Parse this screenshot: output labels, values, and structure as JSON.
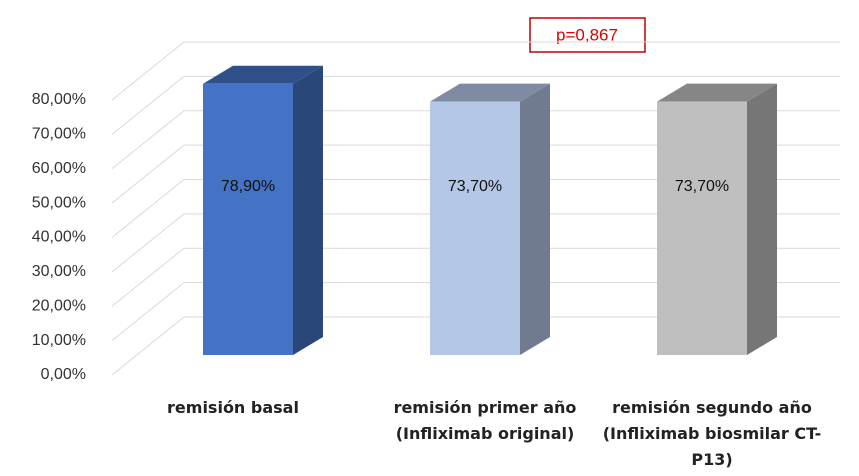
{
  "chart_data": {
    "type": "bar3d",
    "categories": [
      "remisión basal",
      "remisión primer año (Infliximab original)",
      "remisión segundo año (Infliximab biosmilar CT-P13)"
    ],
    "values": [
      78.9,
      73.7,
      73.7
    ],
    "value_labels": [
      "78,90%",
      "73,70%",
      "73,70%"
    ],
    "colors": [
      "#4472c4",
      "#b4c7e7",
      "#bfbfbf"
    ],
    "ylim": [
      0,
      80
    ],
    "yticks": [
      {
        "value": 0,
        "label": "0,00%"
      },
      {
        "value": 10,
        "label": "10,00%"
      },
      {
        "value": 20,
        "label": "20,00%"
      },
      {
        "value": 30,
        "label": "30,00%"
      },
      {
        "value": 40,
        "label": "40,00%"
      },
      {
        "value": 50,
        "label": "50,00%"
      },
      {
        "value": 60,
        "label": "60,00%"
      },
      {
        "value": 70,
        "label": "70,00%"
      },
      {
        "value": 80,
        "label": "80,00%"
      }
    ],
    "grid": true,
    "annotation": "p=0,867"
  }
}
